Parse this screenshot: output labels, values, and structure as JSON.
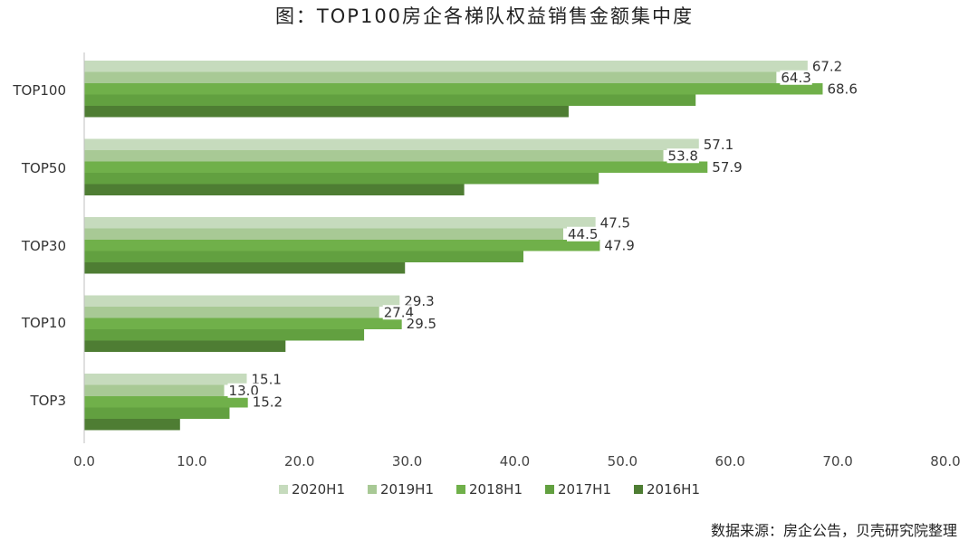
{
  "chart_data": {
    "type": "bar",
    "orientation": "horizontal",
    "title": "图：TOP100房企各梯队权益销售金额集中度",
    "source": "数据来源：房企公告，贝壳研究院整理",
    "categories": [
      "TOP100",
      "TOP50",
      "TOP30",
      "TOP10",
      "TOP3"
    ],
    "series": [
      {
        "name": "2020H1",
        "color": "#c6dbbd",
        "values": [
          67.2,
          57.1,
          47.5,
          29.3,
          15.1
        ],
        "labeled": true
      },
      {
        "name": "2019H1",
        "color": "#a8c995",
        "values": [
          64.3,
          53.8,
          44.5,
          27.4,
          13.0
        ],
        "labeled": true
      },
      {
        "name": "2018H1",
        "color": "#70b04a",
        "values": [
          68.6,
          57.9,
          47.9,
          29.5,
          15.2
        ],
        "labeled": true
      },
      {
        "name": "2017H1",
        "color": "#62a040",
        "values": [
          56.8,
          47.8,
          40.8,
          26.0,
          13.5
        ],
        "labeled": false
      },
      {
        "name": "2016H1",
        "color": "#4e7d33",
        "values": [
          45.0,
          35.3,
          29.8,
          18.7,
          8.9
        ],
        "labeled": false
      }
    ],
    "xlim": [
      0,
      80
    ],
    "xticks": [
      "0.0",
      "10.0",
      "20.0",
      "30.0",
      "40.0",
      "50.0",
      "60.0",
      "70.0",
      "80.0"
    ],
    "xlabel": "",
    "ylabel": "",
    "grid": false,
    "legend_position": "bottom"
  }
}
